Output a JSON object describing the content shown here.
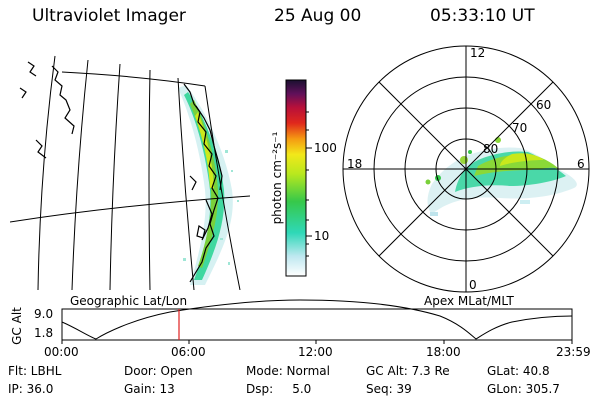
{
  "header": {
    "instrument": "Ultraviolet Imager",
    "date": "25 Aug 00",
    "time": "05:33:10 UT"
  },
  "panels": {
    "left_title": "Geographic Lat/Lon",
    "right_title": "Apex MLat/MLT"
  },
  "colorbar": {
    "unit_label": "photon cm⁻²s⁻¹",
    "ticks": [
      "100",
      "10"
    ]
  },
  "polar": {
    "mlt_labels": {
      "top": "12",
      "left": "18",
      "right": "6",
      "bottom": "0"
    },
    "lat_labels": [
      "60",
      "70",
      "80"
    ]
  },
  "altitude_plot": {
    "ylabel": "GC Alt",
    "ymax_label": "9.0",
    "ymin_label": "1.8",
    "x_ticks": [
      "00:00",
      "06:00",
      "12:00",
      "18:00",
      "23:59"
    ],
    "marker_time": "05:33"
  },
  "footer": {
    "row1": [
      "Flt: LBHL",
      "Door: Open",
      "Mode: Normal",
      "GC Alt: 7.3 Re",
      "GLat:  40.8"
    ],
    "row2": [
      "IP: 36.0",
      "Gain: 13",
      "Dsp:     5.0",
      "Seq: 39",
      "GLon: 305.7"
    ]
  }
}
